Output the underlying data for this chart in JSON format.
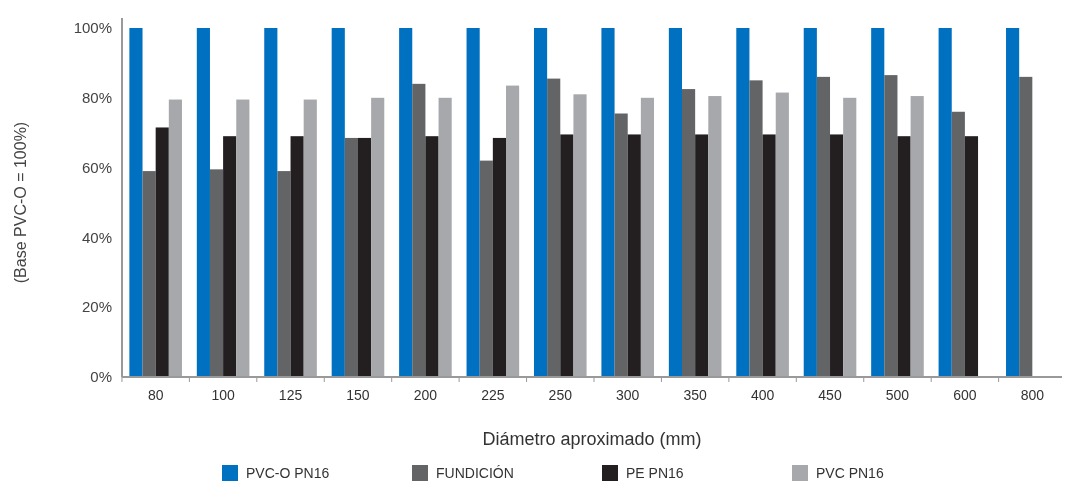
{
  "chart_data": {
    "type": "bar",
    "xlabel": "Diámetro aproximado (mm)",
    "ylabel": "(Base PVC-O = 100%)",
    "categories": [
      "80",
      "100",
      "125",
      "150",
      "200",
      "225",
      "250",
      "300",
      "350",
      "400",
      "450",
      "500",
      "600",
      "800"
    ],
    "series": [
      {
        "name": "PVC-O PN16",
        "color": "#0070c0",
        "values": [
          100,
          100,
          100,
          100,
          100,
          100,
          100,
          100,
          100,
          100,
          100,
          100,
          100,
          100
        ]
      },
      {
        "name": "FUNDICIÓN",
        "color": "#636466",
        "values": [
          59,
          59.5,
          59,
          68.5,
          84,
          62,
          85.5,
          75.5,
          82.5,
          85,
          86,
          86.5,
          76,
          86
        ]
      },
      {
        "name": "PE PN16",
        "color": "#231f20",
        "values": [
          71.5,
          69,
          69,
          68.5,
          69,
          68.5,
          69.5,
          69.5,
          69.5,
          69.5,
          69.5,
          69,
          69,
          null
        ]
      },
      {
        "name": "PVC PN16",
        "color": "#a7a8ab",
        "values": [
          79.5,
          79.5,
          79.5,
          80,
          80,
          83.5,
          81,
          80,
          80.5,
          81.5,
          80,
          80.5,
          null,
          null
        ]
      }
    ],
    "ylim": [
      0,
      100
    ],
    "yticks": [
      {
        "value": 0,
        "label": "0%"
      },
      {
        "value": 20,
        "label": "20%"
      },
      {
        "value": 40,
        "label": "40%"
      },
      {
        "value": 60,
        "label": "60%"
      },
      {
        "value": 80,
        "label": "80%"
      },
      {
        "value": 100,
        "label": "100%"
      }
    ],
    "grid": false,
    "legend": "bottom"
  }
}
